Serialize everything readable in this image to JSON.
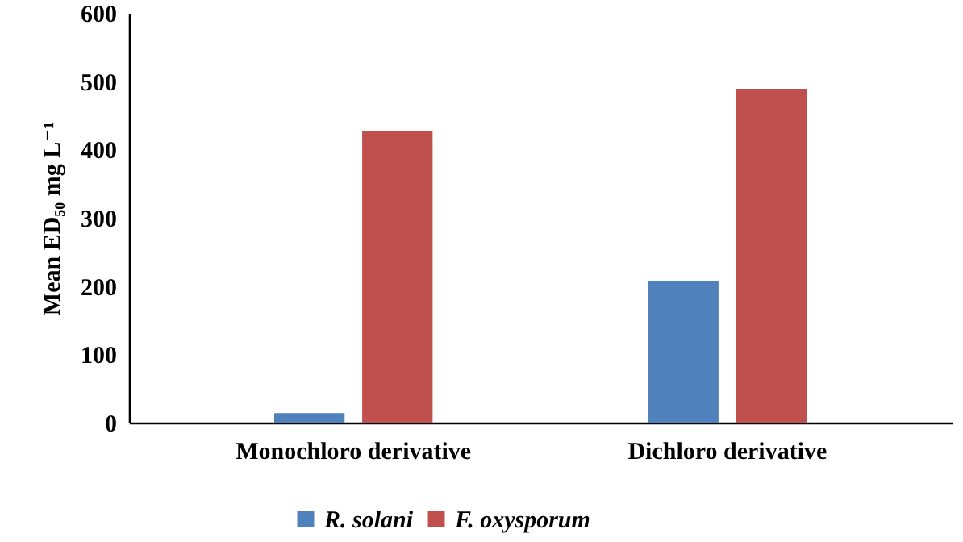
{
  "chart_data": {
    "type": "bar",
    "ylabel": "Mean ED₅₀ mg L⁻¹",
    "categories": [
      "Monochloro derivative",
      "Dichloro derivative"
    ],
    "series": [
      {
        "name": "R. solani",
        "color": "#4f81bd",
        "values": [
          14,
          207
        ]
      },
      {
        "name": "F. oxysporum",
        "color": "#c0504d",
        "values": [
          427,
          489
        ]
      }
    ],
    "ylim": [
      0,
      600
    ],
    "yticks": [
      0,
      100,
      200,
      300,
      400,
      500,
      600
    ],
    "grid": false,
    "legend": "bottom"
  }
}
